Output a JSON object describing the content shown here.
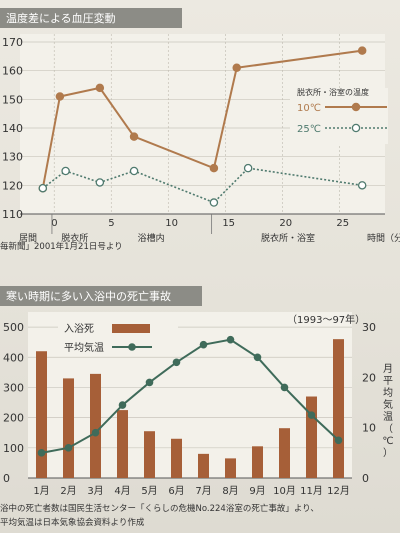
{
  "chart1": {
    "title": "温度差による血圧変動",
    "source": "毎新聞」2001年1月21日号より",
    "legend_title": "脱衣所・浴室の温度",
    "x_unit": "時間（分",
    "x_ticks": [
      "0",
      "5",
      "10",
      "15",
      "20",
      "25"
    ],
    "y_ticks": [
      "110",
      "120",
      "130",
      "140",
      "150",
      "160",
      "170"
    ],
    "phases": [
      "居間",
      "脱衣所",
      "浴槽内",
      "脱衣所・浴室"
    ],
    "colors": {
      "warm": "#b07a4d",
      "cool": "#4f7a6e"
    }
  },
  "chart2": {
    "title": "寒い時期に多い入浴中の死亡事故",
    "period": "（1993～97年）",
    "y2_label": "月平均気温（℃）",
    "footnote1": "浴中の死亡者数は国民生活センター「くらしの危機No.224浴室の死亡事故」より、",
    "footnote2": "平均気温は日本気象協会資料より作成",
    "left_ticks": [
      "0",
      "100",
      "200",
      "300",
      "400",
      "500"
    ],
    "right_ticks": [
      "0",
      "10",
      "20",
      "30"
    ],
    "colors": {
      "bar": "#a65f38",
      "line": "#3f6b5a"
    }
  },
  "chart_data": [
    {
      "type": "line",
      "title": "温度差による血圧変動",
      "xlabel": "時間（分",
      "ylim": [
        110,
        170
      ],
      "xlim": [
        -3,
        29
      ],
      "legend_title": "脱衣所・浴室の温度",
      "series": [
        {
          "name": "10℃",
          "x": [
            -1,
            0.5,
            4,
            7,
            14,
            16,
            27
          ],
          "y": [
            119,
            151,
            154,
            137,
            126,
            161,
            167
          ]
        },
        {
          "name": "25℃",
          "x": [
            -1,
            1,
            4,
            7,
            14,
            17,
            27
          ],
          "y": [
            119,
            125,
            121,
            125,
            114,
            126,
            120
          ]
        }
      ]
    },
    {
      "type": "bar",
      "title": "寒い時期に多い入浴中の死亡事故",
      "categories": [
        "1月",
        "2月",
        "3月",
        "4月",
        "5月",
        "6月",
        "7月",
        "8月",
        "9月",
        "10月",
        "11月",
        "12月"
      ],
      "series": [
        {
          "name": "入浴死",
          "axis": "left",
          "values": [
            420,
            330,
            345,
            225,
            155,
            130,
            80,
            65,
            105,
            165,
            270,
            460
          ]
        },
        {
          "name": "平均気温",
          "axis": "right",
          "type": "line",
          "values": [
            5,
            6,
            9,
            14.5,
            19,
            23,
            26.5,
            27.5,
            24,
            18,
            12.5,
            7.5
          ]
        }
      ],
      "ylim": [
        0,
        550
      ],
      "y2lim": [
        0,
        33
      ]
    }
  ]
}
